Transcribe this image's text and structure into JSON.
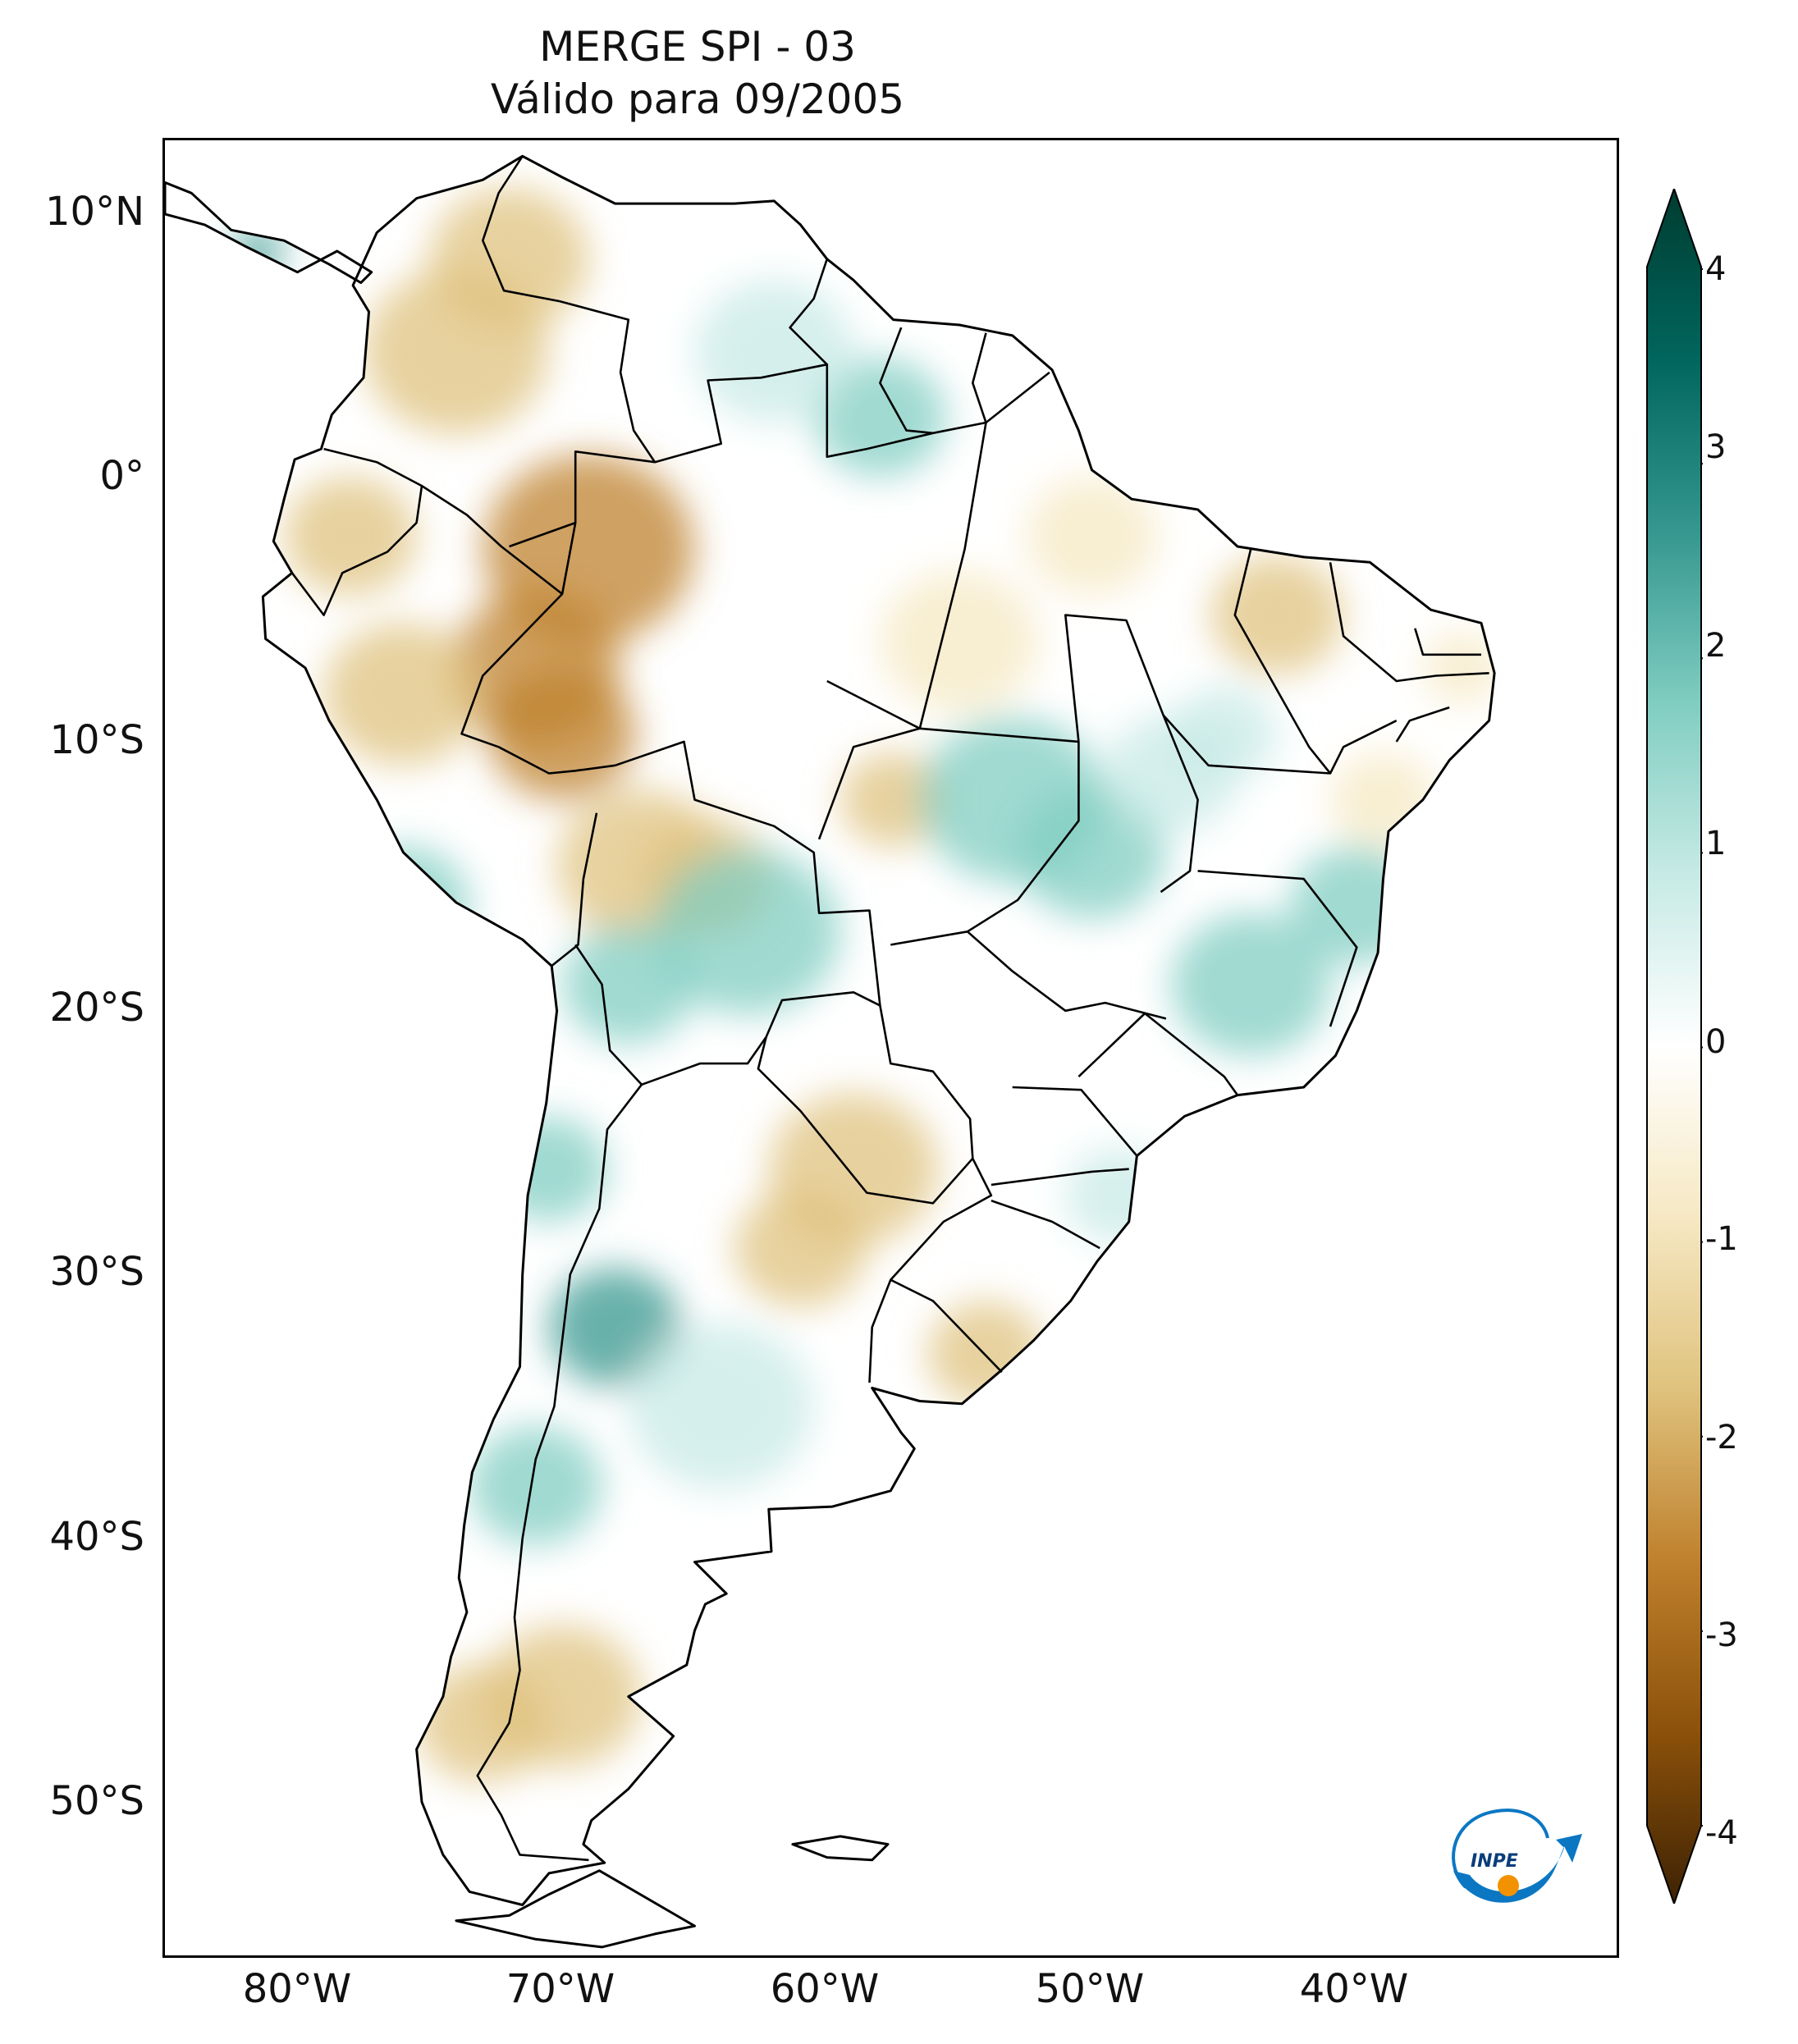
{
  "title": {
    "line1": "MERGE   SPI - 03",
    "line2": "Válido para 09/2005"
  },
  "map": {
    "region": "South America",
    "variable": "SPI - 03",
    "latitude_labels": [
      "10°N",
      "0°",
      "10°S",
      "20°S",
      "30°S",
      "40°S",
      "50°S"
    ],
    "longitude_labels": [
      "80°W",
      "70°W",
      "60°W",
      "50°W",
      "40°W"
    ],
    "extent": {
      "lon_min": -85,
      "lon_max": -30,
      "lat_min": -56,
      "lat_max": 13
    }
  },
  "colorbar": {
    "ticks": [
      "4",
      "3",
      "2",
      "1",
      "0",
      "-1",
      "-2",
      "-3",
      "-4"
    ],
    "min": -4,
    "max": 4,
    "extend": "both",
    "colors": [
      "#3d2204",
      "#8c510a",
      "#bf812d",
      "#dfc27d",
      "#f6e8c3",
      "#ffffff",
      "#c7eae5",
      "#80cdc1",
      "#35978f",
      "#01665e",
      "#003c30"
    ]
  },
  "logo": {
    "text": "INPE",
    "colors": {
      "arc": "#0b77c3",
      "dot": "#f39200"
    }
  }
}
